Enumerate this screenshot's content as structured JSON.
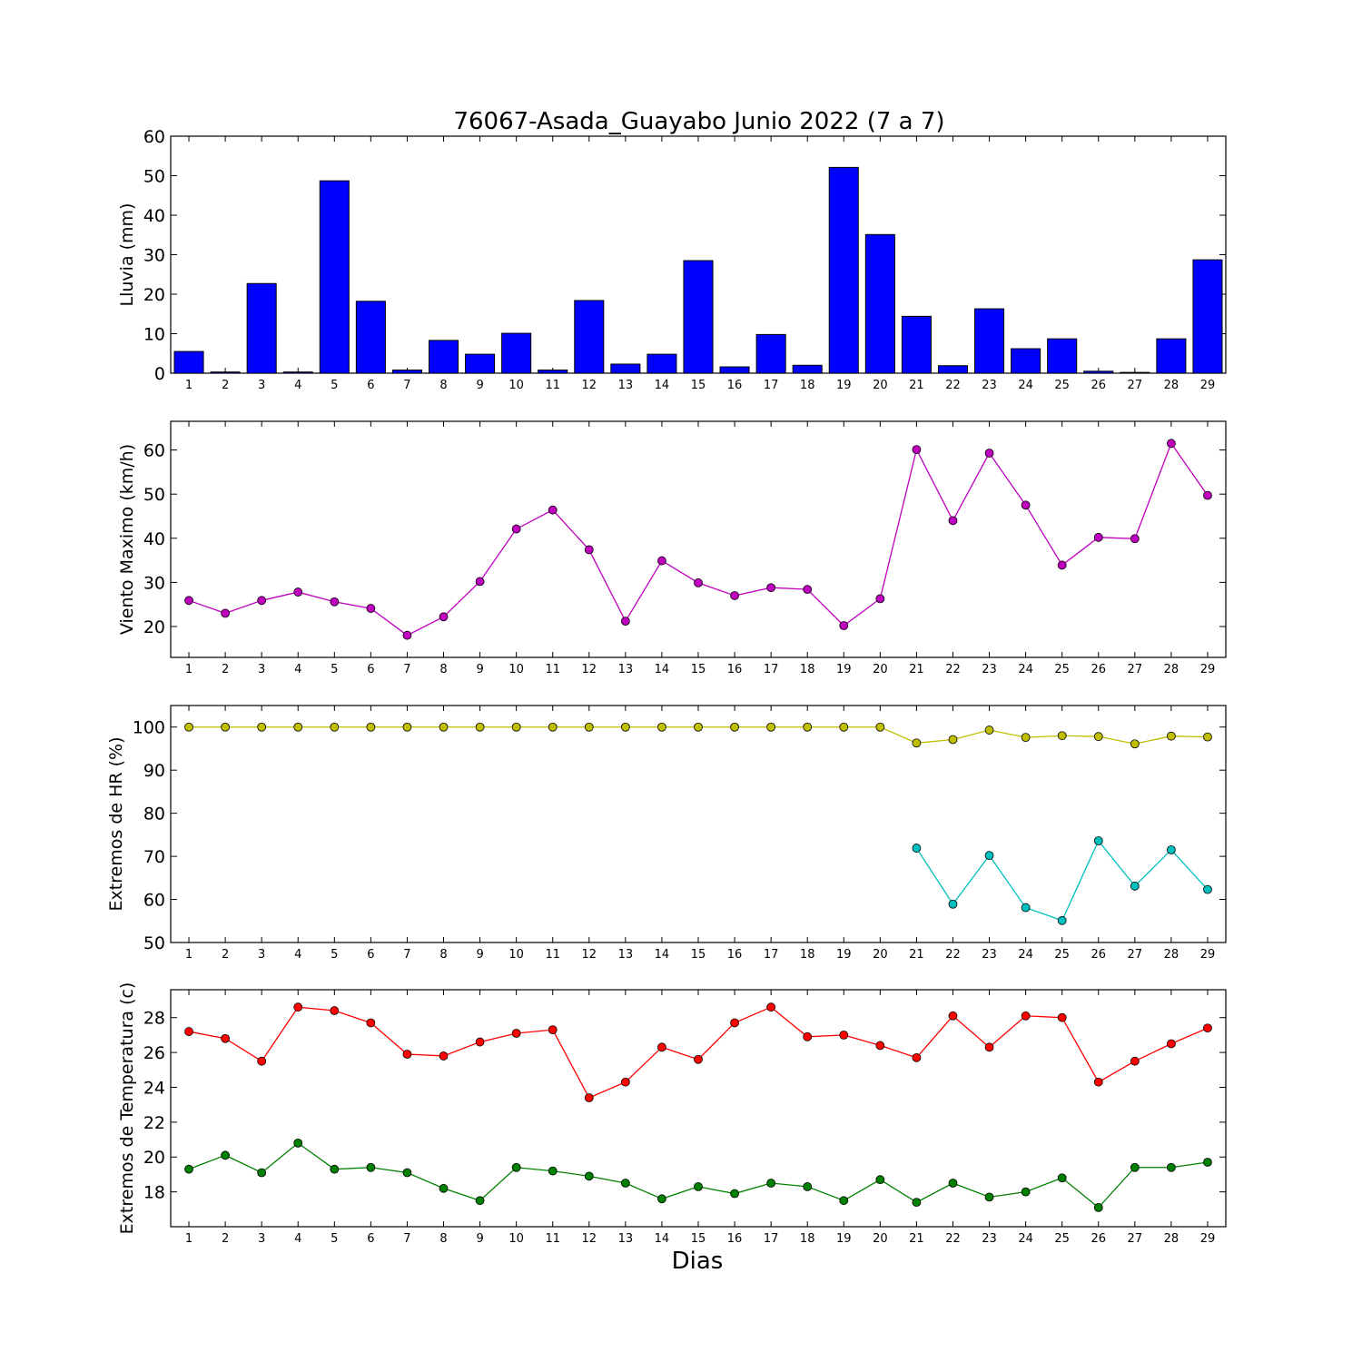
{
  "title": "76067-Asada_Guayabo Junio 2022  (7 a 7)",
  "xlabel": "Dias",
  "colors": {
    "bar": "#0000ff",
    "wind": "#bf00bf",
    "hr_max": "#bfbf00",
    "hr_min": "#00bfbf",
    "temp_max": "#ff0000",
    "temp_min": "#008000"
  },
  "chart_data": [
    {
      "type": "bar",
      "ylabel": "Lluvia (mm)",
      "ylim": [
        0,
        60
      ],
      "yticks": [
        0,
        10,
        20,
        30,
        40,
        50,
        60
      ],
      "x": [
        1,
        2,
        3,
        4,
        5,
        6,
        7,
        8,
        9,
        10,
        11,
        12,
        13,
        14,
        15,
        16,
        17,
        18,
        19,
        20,
        21,
        22,
        23,
        24,
        25,
        26,
        27,
        28,
        29
      ],
      "series": [
        {
          "values": [
            5.5,
            0.3,
            22.7,
            0.3,
            48.7,
            18.2,
            0.8,
            8.3,
            4.8,
            10.1,
            0.8,
            18.4,
            2.3,
            4.8,
            28.5,
            1.6,
            9.8,
            2.0,
            52.1,
            35.1,
            14.4,
            1.9,
            16.3,
            6.2,
            8.7,
            0.5,
            0.2,
            8.7,
            28.7
          ]
        }
      ]
    },
    {
      "type": "line",
      "ylabel": "Viento Maximo (km/h)",
      "ylim": [
        13,
        66.5
      ],
      "yticks": [
        20,
        30,
        40,
        50,
        60
      ],
      "x": [
        1,
        2,
        3,
        4,
        5,
        6,
        7,
        8,
        9,
        10,
        11,
        12,
        13,
        14,
        15,
        16,
        17,
        18,
        19,
        20,
        21,
        22,
        23,
        24,
        25,
        26,
        27,
        28,
        29
      ],
      "series": [
        {
          "values": [
            25.9,
            23.0,
            25.9,
            27.8,
            25.6,
            24.1,
            18.0,
            22.2,
            30.2,
            42.1,
            46.4,
            37.4,
            21.2,
            34.9,
            29.9,
            27.0,
            28.8,
            28.4,
            20.2,
            26.3,
            60.1,
            44.0,
            59.3,
            47.5,
            33.9,
            40.2,
            39.9,
            61.5,
            49.7
          ]
        }
      ]
    },
    {
      "type": "line",
      "ylabel": "Extremos de HR (%)",
      "ylim": [
        50,
        105
      ],
      "yticks": [
        50,
        60,
        70,
        80,
        90,
        100
      ],
      "x": [
        1,
        2,
        3,
        4,
        5,
        6,
        7,
        8,
        9,
        10,
        11,
        12,
        13,
        14,
        15,
        16,
        17,
        18,
        19,
        20,
        21,
        22,
        23,
        24,
        25,
        26,
        27,
        28,
        29
      ],
      "series": [
        {
          "values": [
            100,
            100,
            100,
            100,
            100,
            100,
            100,
            100,
            100,
            100,
            100,
            100,
            100,
            100,
            100,
            100,
            100,
            100,
            100,
            100,
            96.3,
            97.1,
            99.3,
            97.6,
            98.0,
            97.8,
            96.1,
            97.9,
            97.7
          ]
        },
        {
          "values": [
            null,
            null,
            null,
            null,
            null,
            null,
            null,
            null,
            null,
            null,
            null,
            null,
            null,
            null,
            null,
            null,
            null,
            null,
            null,
            null,
            71.9,
            58.9,
            70.2,
            58.1,
            55.1,
            73.6,
            63.1,
            71.5,
            62.3
          ]
        }
      ]
    },
    {
      "type": "line",
      "ylabel": "Extremos de Temperatura (c)",
      "ylim": [
        16,
        29.6
      ],
      "yticks": [
        18,
        20,
        22,
        24,
        26,
        28
      ],
      "x": [
        1,
        2,
        3,
        4,
        5,
        6,
        7,
        8,
        9,
        10,
        11,
        12,
        13,
        14,
        15,
        16,
        17,
        18,
        19,
        20,
        21,
        22,
        23,
        24,
        25,
        26,
        27,
        28,
        29
      ],
      "series": [
        {
          "values": [
            27.2,
            26.8,
            25.5,
            28.6,
            28.4,
            27.7,
            25.9,
            25.8,
            26.6,
            27.1,
            27.3,
            23.4,
            24.3,
            26.3,
            25.6,
            27.7,
            28.6,
            26.9,
            27.0,
            26.4,
            25.7,
            28.1,
            26.3,
            28.1,
            28.0,
            24.3,
            25.5,
            26.5,
            27.4
          ]
        },
        {
          "values": [
            19.3,
            20.1,
            19.1,
            20.8,
            19.3,
            19.4,
            19.1,
            18.2,
            17.5,
            19.4,
            19.2,
            18.9,
            18.5,
            17.6,
            18.3,
            17.9,
            18.5,
            18.3,
            17.5,
            18.7,
            17.4,
            18.5,
            17.7,
            18.0,
            18.8,
            17.1,
            19.4,
            19.4,
            19.7
          ]
        }
      ]
    }
  ]
}
